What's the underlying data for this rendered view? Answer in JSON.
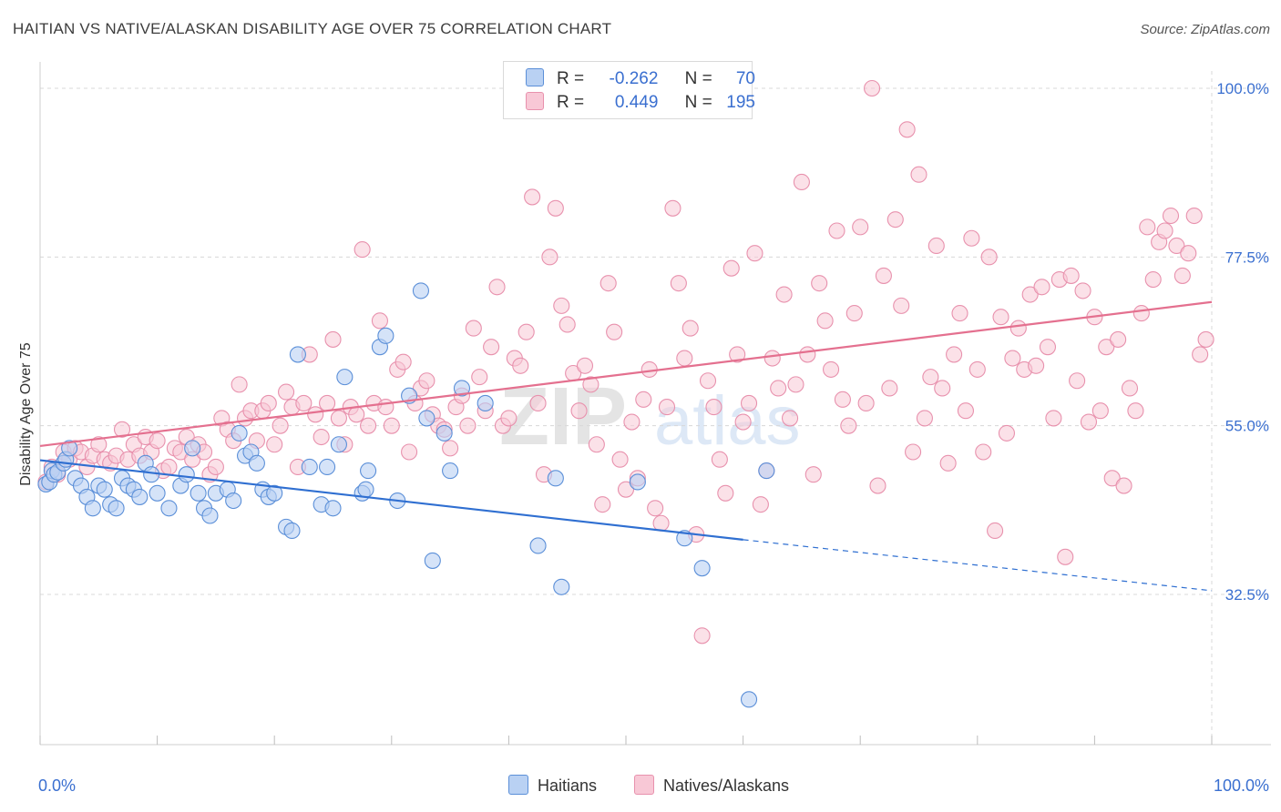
{
  "title": "HAITIAN VS NATIVE/ALASKAN DISABILITY AGE OVER 75 CORRELATION CHART",
  "source": "Source: ZipAtlas.com",
  "watermark": {
    "zip": "ZIP",
    "atlas": "atlas"
  },
  "legend": {
    "haitians": {
      "r_label": "R =",
      "r_value": "-0.262",
      "n_label": "N =",
      "n_value": "70"
    },
    "natives": {
      "r_label": "R =",
      "r_value": "0.449",
      "n_label": "N =",
      "n_value": "195"
    }
  },
  "colors": {
    "haitians_fill": "#b9d1f3",
    "haitians_stroke": "#5b8fd8",
    "haitians_line": "#2f6fd1",
    "natives_fill": "#f8c8d6",
    "natives_stroke": "#e891ad",
    "natives_line": "#e4708f",
    "grid": "#d8d8d8",
    "tick_label": "#3a6fd0"
  },
  "chart_data": {
    "type": "scatter",
    "title": "HAITIAN VS NATIVE/ALASKAN DISABILITY AGE OVER 75 CORRELATION CHART",
    "xlabel": "",
    "ylabel": "Disability Age Over 75",
    "xlim": [
      0,
      100
    ],
    "ylim": [
      15,
      102
    ],
    "x_tick_labels": [
      "0.0%",
      "100.0%"
    ],
    "y_ticks": [
      32.5,
      55.0,
      77.5,
      100.0
    ],
    "y_tick_labels": [
      "32.5%",
      "55.0%",
      "77.5%",
      "100.0%"
    ],
    "legend_labels": [
      "Haitians",
      "Natives/Alaskans"
    ],
    "series": [
      {
        "name": "Haitians",
        "r": -0.262,
        "n": 70,
        "trend": {
          "x0": 0,
          "y0": 50.4,
          "x1": 60,
          "y1": 39.8,
          "dash_to_x": 100,
          "dash_to_y": 33.0
        },
        "points": [
          [
            0.5,
            47.2
          ],
          [
            0.8,
            47.5
          ],
          [
            1.0,
            49.0
          ],
          [
            1.2,
            48.5
          ],
          [
            1.5,
            48.8
          ],
          [
            2.0,
            50.0
          ],
          [
            2.2,
            50.5
          ],
          [
            2.5,
            52.0
          ],
          [
            3.0,
            48.0
          ],
          [
            3.5,
            47.0
          ],
          [
            4.0,
            45.5
          ],
          [
            4.5,
            44.0
          ],
          [
            5.0,
            47.0
          ],
          [
            5.5,
            46.5
          ],
          [
            6.0,
            44.5
          ],
          [
            6.5,
            44.0
          ],
          [
            7.0,
            48.0
          ],
          [
            7.5,
            47.0
          ],
          [
            8.0,
            46.5
          ],
          [
            8.5,
            45.5
          ],
          [
            9.0,
            50.0
          ],
          [
            9.5,
            48.5
          ],
          [
            10.0,
            46.0
          ],
          [
            11.0,
            44.0
          ],
          [
            12.0,
            47.0
          ],
          [
            12.5,
            48.5
          ],
          [
            13.0,
            52.0
          ],
          [
            13.5,
            46.0
          ],
          [
            14.0,
            44.0
          ],
          [
            14.5,
            43.0
          ],
          [
            15.0,
            46.0
          ],
          [
            16.0,
            46.5
          ],
          [
            16.5,
            45.0
          ],
          [
            17.0,
            54.0
          ],
          [
            17.5,
            51.0
          ],
          [
            18.0,
            51.5
          ],
          [
            18.5,
            50.0
          ],
          [
            19.0,
            46.5
          ],
          [
            19.5,
            45.5
          ],
          [
            20.0,
            46.0
          ],
          [
            21.0,
            41.5
          ],
          [
            21.5,
            41.0
          ],
          [
            22.0,
            64.5
          ],
          [
            23.0,
            49.5
          ],
          [
            24.0,
            44.5
          ],
          [
            24.5,
            49.5
          ],
          [
            25.0,
            44.0
          ],
          [
            25.5,
            52.5
          ],
          [
            26.0,
            61.5
          ],
          [
            27.5,
            46.0
          ],
          [
            27.8,
            46.5
          ],
          [
            28.0,
            49.0
          ],
          [
            29.0,
            65.5
          ],
          [
            29.5,
            67.0
          ],
          [
            30.5,
            45.0
          ],
          [
            31.5,
            59.0
          ],
          [
            32.5,
            73.0
          ],
          [
            33.0,
            56.0
          ],
          [
            33.5,
            37.0
          ],
          [
            34.5,
            54.0
          ],
          [
            35.0,
            49.0
          ],
          [
            36.0,
            60.0
          ],
          [
            38.0,
            58.0
          ],
          [
            42.5,
            39.0
          ],
          [
            44.0,
            48.0
          ],
          [
            44.5,
            33.5
          ],
          [
            51.0,
            47.5
          ],
          [
            55.0,
            40.0
          ],
          [
            56.5,
            36.0
          ],
          [
            60.5,
            18.5
          ],
          [
            62.0,
            49.0
          ]
        ]
      },
      {
        "name": "Natives/Alaskans",
        "r": 0.449,
        "n": 195,
        "trend": {
          "x0": 0,
          "y0": 52.3,
          "x1": 100,
          "y1": 71.5
        },
        "points": [
          [
            0.5,
            47.5
          ],
          [
            1.0,
            49.5
          ],
          [
            1.5,
            48.5
          ],
          [
            2.0,
            51.5
          ],
          [
            2.5,
            50.5
          ],
          [
            3.0,
            52.0
          ],
          [
            3.5,
            51.5
          ],
          [
            4.0,
            49.5
          ],
          [
            4.5,
            51.0
          ],
          [
            5.0,
            52.5
          ],
          [
            5.5,
            50.5
          ],
          [
            6.0,
            50.0
          ],
          [
            6.5,
            51.0
          ],
          [
            7.0,
            54.5
          ],
          [
            7.5,
            50.5
          ],
          [
            8.0,
            52.5
          ],
          [
            8.5,
            51.0
          ],
          [
            9.0,
            53.5
          ],
          [
            9.5,
            51.5
          ],
          [
            10.0,
            53.0
          ],
          [
            10.5,
            49.0
          ],
          [
            11.0,
            49.5
          ],
          [
            11.5,
            52.0
          ],
          [
            12.0,
            51.5
          ],
          [
            12.5,
            53.5
          ],
          [
            13.0,
            50.5
          ],
          [
            13.5,
            52.5
          ],
          [
            14.0,
            51.5
          ],
          [
            14.5,
            48.5
          ],
          [
            15.0,
            49.5
          ],
          [
            15.5,
            56.0
          ],
          [
            16.0,
            54.5
          ],
          [
            16.5,
            53.0
          ],
          [
            17.0,
            60.5
          ],
          [
            17.5,
            56.0
          ],
          [
            18.0,
            57.0
          ],
          [
            18.5,
            53.0
          ],
          [
            19.0,
            57.0
          ],
          [
            19.5,
            58.0
          ],
          [
            20.0,
            52.5
          ],
          [
            20.5,
            55.0
          ],
          [
            21.0,
            59.5
          ],
          [
            21.5,
            57.5
          ],
          [
            22.0,
            49.5
          ],
          [
            22.5,
            58.0
          ],
          [
            23.0,
            64.5
          ],
          [
            23.5,
            56.5
          ],
          [
            24.0,
            53.5
          ],
          [
            24.5,
            58.0
          ],
          [
            25.0,
            66.5
          ],
          [
            25.5,
            56.0
          ],
          [
            26.0,
            52.5
          ],
          [
            26.5,
            57.5
          ],
          [
            27.0,
            56.5
          ],
          [
            27.5,
            78.5
          ],
          [
            28.0,
            55.0
          ],
          [
            28.5,
            58.0
          ],
          [
            29.0,
            69.0
          ],
          [
            29.5,
            57.5
          ],
          [
            30.0,
            55.0
          ],
          [
            30.5,
            62.5
          ],
          [
            31.0,
            63.5
          ],
          [
            31.5,
            51.5
          ],
          [
            32.0,
            58.0
          ],
          [
            32.5,
            60.0
          ],
          [
            33.0,
            61.0
          ],
          [
            33.5,
            56.5
          ],
          [
            34.0,
            55.0
          ],
          [
            34.5,
            54.5
          ],
          [
            35.0,
            52.0
          ],
          [
            35.5,
            57.5
          ],
          [
            36.0,
            59.0
          ],
          [
            36.5,
            55.0
          ],
          [
            37.0,
            68.0
          ],
          [
            37.5,
            61.5
          ],
          [
            38.0,
            57.0
          ],
          [
            38.5,
            65.5
          ],
          [
            39.0,
            73.5
          ],
          [
            39.5,
            55.0
          ],
          [
            40.0,
            56.0
          ],
          [
            40.5,
            64.0
          ],
          [
            41.0,
            63.0
          ],
          [
            41.5,
            67.5
          ],
          [
            42.0,
            85.5
          ],
          [
            42.5,
            58.0
          ],
          [
            43.0,
            48.5
          ],
          [
            43.5,
            77.5
          ],
          [
            44.0,
            84.0
          ],
          [
            44.5,
            71.0
          ],
          [
            45.0,
            68.5
          ],
          [
            45.5,
            62.0
          ],
          [
            46.0,
            57.0
          ],
          [
            46.5,
            63.0
          ],
          [
            47.0,
            60.5
          ],
          [
            47.5,
            52.5
          ],
          [
            48.0,
            44.5
          ],
          [
            48.5,
            74.0
          ],
          [
            49.0,
            67.5
          ],
          [
            49.5,
            50.5
          ],
          [
            50.0,
            46.5
          ],
          [
            50.5,
            55.5
          ],
          [
            51.0,
            48.0
          ],
          [
            51.5,
            58.5
          ],
          [
            52.0,
            62.5
          ],
          [
            52.5,
            44.0
          ],
          [
            53.0,
            42.0
          ],
          [
            53.5,
            57.5
          ],
          [
            54.0,
            84.0
          ],
          [
            54.5,
            74.0
          ],
          [
            55.0,
            64.0
          ],
          [
            55.5,
            68.0
          ],
          [
            56.0,
            40.5
          ],
          [
            56.5,
            27.0
          ],
          [
            57.0,
            61.0
          ],
          [
            57.5,
            57.5
          ],
          [
            58.0,
            50.5
          ],
          [
            58.5,
            46.0
          ],
          [
            59.0,
            76.0
          ],
          [
            59.5,
            64.5
          ],
          [
            60.0,
            55.5
          ],
          [
            60.5,
            58.0
          ],
          [
            61.0,
            78.0
          ],
          [
            61.5,
            44.5
          ],
          [
            62.0,
            49.0
          ],
          [
            62.5,
            64.0
          ],
          [
            63.0,
            60.0
          ],
          [
            63.5,
            72.5
          ],
          [
            64.0,
            56.0
          ],
          [
            64.5,
            60.5
          ],
          [
            65.0,
            87.5
          ],
          [
            65.5,
            64.5
          ],
          [
            66.0,
            48.5
          ],
          [
            66.5,
            74.0
          ],
          [
            67.0,
            69.0
          ],
          [
            67.5,
            62.5
          ],
          [
            68.0,
            81.0
          ],
          [
            68.5,
            58.5
          ],
          [
            69.0,
            55.0
          ],
          [
            69.5,
            70.0
          ],
          [
            70.0,
            81.5
          ],
          [
            70.5,
            58.0
          ],
          [
            71.0,
            100.0
          ],
          [
            71.5,
            47.0
          ],
          [
            72.0,
            75.0
          ],
          [
            72.5,
            60.0
          ],
          [
            73.0,
            82.5
          ],
          [
            73.5,
            71.0
          ],
          [
            74.0,
            94.5
          ],
          [
            74.5,
            51.5
          ],
          [
            75.0,
            88.5
          ],
          [
            75.5,
            56.0
          ],
          [
            76.0,
            61.5
          ],
          [
            76.5,
            79.0
          ],
          [
            77.0,
            60.0
          ],
          [
            77.5,
            50.0
          ],
          [
            78.0,
            64.5
          ],
          [
            78.5,
            70.0
          ],
          [
            79.0,
            57.0
          ],
          [
            79.5,
            80.0
          ],
          [
            80.0,
            62.5
          ],
          [
            80.5,
            51.5
          ],
          [
            81.0,
            77.5
          ],
          [
            81.5,
            41.0
          ],
          [
            82.0,
            69.5
          ],
          [
            82.5,
            54.0
          ],
          [
            83.0,
            64.0
          ],
          [
            83.5,
            68.0
          ],
          [
            84.0,
            62.5
          ],
          [
            84.5,
            72.5
          ],
          [
            85.0,
            63.0
          ],
          [
            85.5,
            73.5
          ],
          [
            86.0,
            65.5
          ],
          [
            86.5,
            56.0
          ],
          [
            87.0,
            74.5
          ],
          [
            87.5,
            37.5
          ],
          [
            88.0,
            75.0
          ],
          [
            88.5,
            61.0
          ],
          [
            89.0,
            73.0
          ],
          [
            89.5,
            55.5
          ],
          [
            90.0,
            69.5
          ],
          [
            90.5,
            57.0
          ],
          [
            91.0,
            65.5
          ],
          [
            91.5,
            48.0
          ],
          [
            92.0,
            66.5
          ],
          [
            92.5,
            47.0
          ],
          [
            93.0,
            60.0
          ],
          [
            93.5,
            57.0
          ],
          [
            94.0,
            70.0
          ],
          [
            94.5,
            81.5
          ],
          [
            95.0,
            74.5
          ],
          [
            95.5,
            79.5
          ],
          [
            96.0,
            81.0
          ],
          [
            96.5,
            83.0
          ],
          [
            97.0,
            79.0
          ],
          [
            97.5,
            75.0
          ],
          [
            98.0,
            78.0
          ],
          [
            98.5,
            83.0
          ],
          [
            99.0,
            64.5
          ],
          [
            99.5,
            66.5
          ]
        ]
      }
    ]
  }
}
